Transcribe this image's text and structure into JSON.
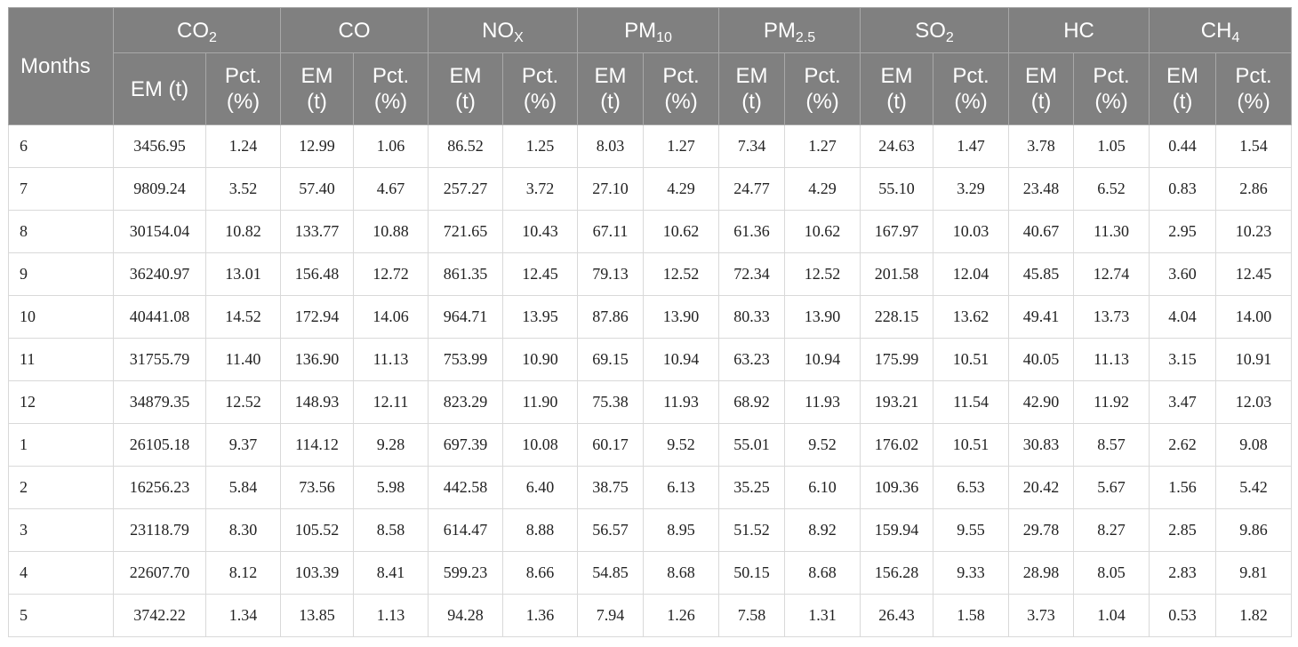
{
  "table": {
    "months_header": "Months",
    "pollutants": [
      {
        "base": "CO",
        "sub": "2"
      },
      {
        "base": "CO",
        "sub": ""
      },
      {
        "base": "NO",
        "sub": "X"
      },
      {
        "base": "PM",
        "sub": "10"
      },
      {
        "base": "PM",
        "sub": "2.5"
      },
      {
        "base": "SO",
        "sub": "2"
      },
      {
        "base": "HC",
        "sub": ""
      },
      {
        "base": "CH",
        "sub": "4"
      }
    ],
    "subheaders": [
      {
        "em": "EM (t)",
        "pct_line1": "Pct.",
        "pct_line2": "(%)"
      },
      {
        "em_line1": "EM",
        "em_line2": "(t)",
        "pct_line1": "Pct.",
        "pct_line2": "(%)"
      },
      {
        "em_line1": "EM",
        "em_line2": "(t)",
        "pct_line1": "Pct.",
        "pct_line2": "(%)"
      },
      {
        "em_line1": "EM",
        "em_line2": "(t)",
        "pct_line1": "Pct.",
        "pct_line2": "(%)"
      },
      {
        "em_line1": "EM",
        "em_line2": "(t)",
        "pct_line1": "Pct.",
        "pct_line2": "(%)"
      },
      {
        "em_line1": "EM",
        "em_line2": "(t)",
        "pct_line1": "Pct.",
        "pct_line2": "(%)"
      },
      {
        "em_line1": "EM",
        "em_line2": "(t)",
        "pct_line1": "Pct.",
        "pct_line2": "(%)"
      },
      {
        "em_line1": "EM",
        "em_line2": "(t)",
        "pct_line1": "Pct.",
        "pct_line2": "(%)"
      }
    ],
    "rows": [
      [
        "6",
        "3456.95",
        "1.24",
        "12.99",
        "1.06",
        "86.52",
        "1.25",
        "8.03",
        "1.27",
        "7.34",
        "1.27",
        "24.63",
        "1.47",
        "3.78",
        "1.05",
        "0.44",
        "1.54"
      ],
      [
        "7",
        "9809.24",
        "3.52",
        "57.40",
        "4.67",
        "257.27",
        "3.72",
        "27.10",
        "4.29",
        "24.77",
        "4.29",
        "55.10",
        "3.29",
        "23.48",
        "6.52",
        "0.83",
        "2.86"
      ],
      [
        "8",
        "30154.04",
        "10.82",
        "133.77",
        "10.88",
        "721.65",
        "10.43",
        "67.11",
        "10.62",
        "61.36",
        "10.62",
        "167.97",
        "10.03",
        "40.67",
        "11.30",
        "2.95",
        "10.23"
      ],
      [
        "9",
        "36240.97",
        "13.01",
        "156.48",
        "12.72",
        "861.35",
        "12.45",
        "79.13",
        "12.52",
        "72.34",
        "12.52",
        "201.58",
        "12.04",
        "45.85",
        "12.74",
        "3.60",
        "12.45"
      ],
      [
        "10",
        "40441.08",
        "14.52",
        "172.94",
        "14.06",
        "964.71",
        "13.95",
        "87.86",
        "13.90",
        "80.33",
        "13.90",
        "228.15",
        "13.62",
        "49.41",
        "13.73",
        "4.04",
        "14.00"
      ],
      [
        "11",
        "31755.79",
        "11.40",
        "136.90",
        "11.13",
        "753.99",
        "10.90",
        "69.15",
        "10.94",
        "63.23",
        "10.94",
        "175.99",
        "10.51",
        "40.05",
        "11.13",
        "3.15",
        "10.91"
      ],
      [
        "12",
        "34879.35",
        "12.52",
        "148.93",
        "12.11",
        "823.29",
        "11.90",
        "75.38",
        "11.93",
        "68.92",
        "11.93",
        "193.21",
        "11.54",
        "42.90",
        "11.92",
        "3.47",
        "12.03"
      ],
      [
        "1",
        "26105.18",
        "9.37",
        "114.12",
        "9.28",
        "697.39",
        "10.08",
        "60.17",
        "9.52",
        "55.01",
        "9.52",
        "176.02",
        "10.51",
        "30.83",
        "8.57",
        "2.62",
        "9.08"
      ],
      [
        "2",
        "16256.23",
        "5.84",
        "73.56",
        "5.98",
        "442.58",
        "6.40",
        "38.75",
        "6.13",
        "35.25",
        "6.10",
        "109.36",
        "6.53",
        "20.42",
        "5.67",
        "1.56",
        "5.42"
      ],
      [
        "3",
        "23118.79",
        "8.30",
        "105.52",
        "8.58",
        "614.47",
        "8.88",
        "56.57",
        "8.95",
        "51.52",
        "8.92",
        "159.94",
        "9.55",
        "29.78",
        "8.27",
        "2.85",
        "9.86"
      ],
      [
        "4",
        "22607.70",
        "8.12",
        "103.39",
        "8.41",
        "599.23",
        "8.66",
        "54.85",
        "8.68",
        "50.15",
        "8.68",
        "156.28",
        "9.33",
        "28.98",
        "8.05",
        "2.83",
        "9.81"
      ],
      [
        "5",
        "3742.22",
        "1.34",
        "13.85",
        "1.13",
        "94.28",
        "1.36",
        "7.94",
        "1.26",
        "7.58",
        "1.31",
        "26.43",
        "1.58",
        "3.73",
        "1.04",
        "0.53",
        "1.82"
      ]
    ]
  }
}
